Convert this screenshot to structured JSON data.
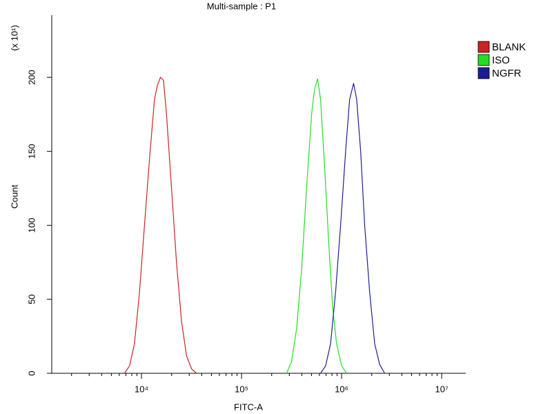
{
  "chart_data": {
    "type": "line",
    "title": "Multi-sample : P1",
    "x_label": "FITC-A",
    "y_label": "Count",
    "y_multiplier": "(x 10¹)",
    "log_x": true,
    "xlim": [
      1268,
      17400000
    ],
    "ylim": [
      0,
      242
    ],
    "xticks": [
      {
        "value": 10000,
        "label": "10⁴"
      },
      {
        "value": 100000,
        "label": "10⁵"
      },
      {
        "value": 1000000,
        "label": "10⁶"
      },
      {
        "value": 10000000,
        "label": "10⁷"
      }
    ],
    "xminorticks": [
      2000,
      3000,
      4000,
      5000,
      6000,
      7000,
      8000,
      9000,
      20000,
      30000,
      40000,
      50000,
      60000,
      70000,
      80000,
      90000,
      200000,
      300000,
      400000,
      500000,
      600000,
      700000,
      800000,
      900000,
      2000000,
      3000000,
      4000000,
      5000000,
      6000000,
      7000000,
      8000000,
      9000000
    ],
    "yticks": [
      0,
      50,
      100,
      150,
      200
    ],
    "legend": "right",
    "series": [
      {
        "name": "BLANK",
        "color": "#cc2222",
        "x": [
          6761,
          7586,
          8511,
          9550,
          10715,
          12023,
          13490,
          14454,
          15488,
          16596,
          17783,
          19953,
          22387,
          25119,
          28184,
          31623,
          35481
        ],
        "y": [
          0,
          5,
          20,
          55,
          100,
          145,
          185,
          195,
          200,
          198,
          175,
          125,
          75,
          35,
          12,
          3,
          0
        ]
      },
      {
        "name": "ISO",
        "color": "#22dd22",
        "x": [
          281838,
          316228,
          354813,
          398107,
          446684,
          501187,
          537032,
          575440,
          616595,
          676083,
          741310,
          812831,
          891251,
          1000000,
          1122018
        ],
        "y": [
          0,
          8,
          30,
          70,
          125,
          175,
          192,
          199,
          185,
          140,
          90,
          45,
          20,
          5,
          0
        ]
      },
      {
        "name": "NGFR",
        "color": "#1c1c99",
        "x": [
          616595,
          691831,
          776247,
          870964,
          977237,
          1096478,
          1202264,
          1318257,
          1412538,
          1548817,
          1698244,
          1905461,
          2137962,
          2398833,
          2691535
        ],
        "y": [
          0,
          5,
          20,
          55,
          100,
          150,
          185,
          196,
          185,
          150,
          100,
          55,
          20,
          6,
          0
        ]
      }
    ]
  }
}
